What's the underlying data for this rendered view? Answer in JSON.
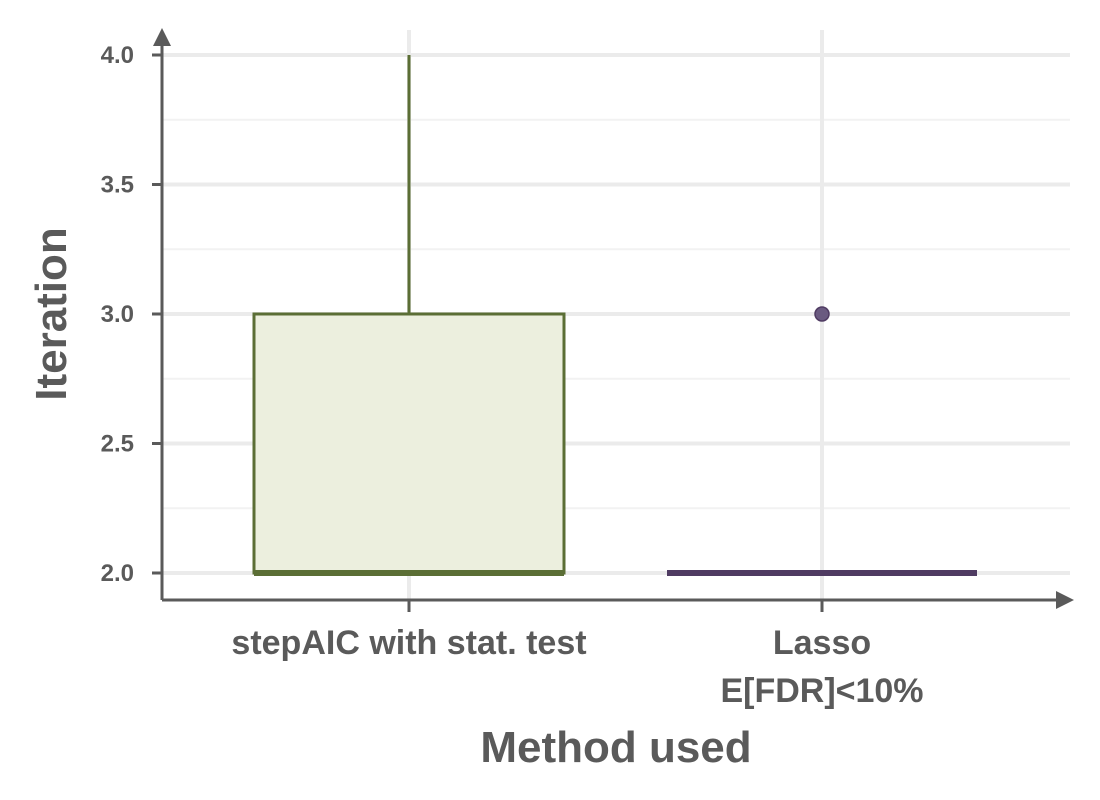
{
  "chart_data": {
    "type": "box",
    "xlabel": "Method used",
    "ylabel": "Iteration",
    "ylim": [
      1.9,
      4.05
    ],
    "y_ticks": [
      "2.0",
      "2.5",
      "3.0",
      "3.5",
      "4.0"
    ],
    "y_tick_values": [
      2.0,
      2.5,
      3.0,
      3.5,
      4.0
    ],
    "y_minor_ticks": [
      2.25,
      2.75,
      3.25,
      3.75
    ],
    "grid": true,
    "categories": [
      {
        "label_lines": [
          "stepAIC with stat. test"
        ]
      },
      {
        "label_lines": [
          "Lasso",
          "E[FDR]<10%"
        ]
      }
    ],
    "boxes": [
      {
        "min": 2.0,
        "q1": 2.0,
        "median": 2.0,
        "q3": 3.0,
        "max": 4.0,
        "outliers": [],
        "color": "#5b6e35",
        "fill": "#ecefde"
      },
      {
        "min": 2.0,
        "q1": 2.0,
        "median": 2.0,
        "q3": 2.0,
        "max": 2.0,
        "outliers": [
          3.0
        ],
        "color": "#4f3b62",
        "fill": "#ddd5e6"
      }
    ],
    "colors": {
      "axis": "#5a5a5a",
      "grid_major": "#ebebeb",
      "grid_minor": "#f2f2f2"
    }
  }
}
